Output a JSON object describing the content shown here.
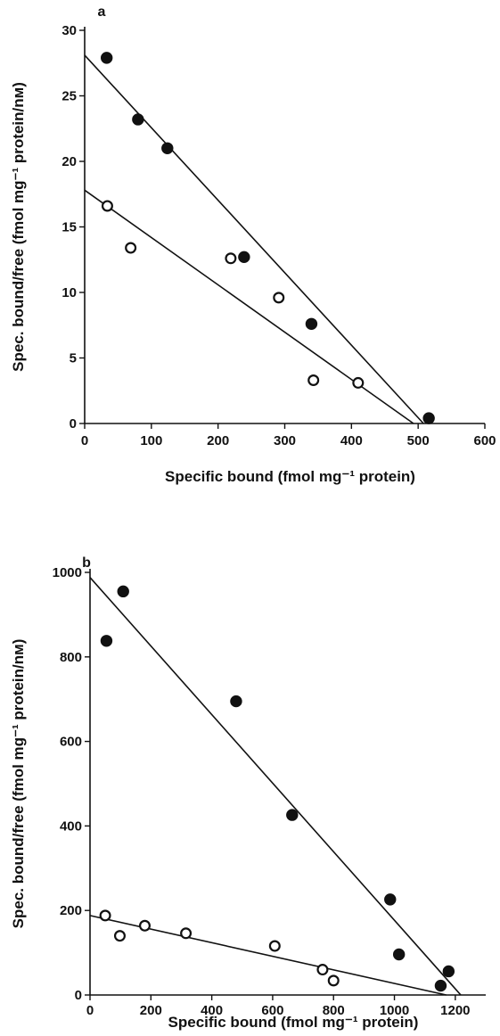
{
  "chart_data": [
    {
      "panel": "a",
      "type": "scatter",
      "xlabel": "Specific bound (fmol mg⁻¹ protein)",
      "ylabel": "Spec. bound/free (fmol mg⁻¹ protein/nм)",
      "xlim": [
        0,
        600
      ],
      "ylim": [
        0,
        30
      ],
      "xticks": [
        0,
        100,
        200,
        300,
        400,
        500,
        600
      ],
      "yticks": [
        0,
        5,
        10,
        15,
        20,
        25,
        30
      ],
      "grid": false,
      "series": [
        {
          "marker": "filled-circle",
          "points": [
            [
              33,
              27.9
            ],
            [
              80,
              23.2
            ],
            [
              124,
              21.0
            ],
            [
              239,
              12.7
            ],
            [
              340,
              7.6
            ],
            [
              516,
              0.4
            ]
          ],
          "fit_line": [
            [
              0,
              28.1
            ],
            [
              508,
              0
            ]
          ]
        },
        {
          "marker": "open-circle",
          "points": [
            [
              34,
              16.6
            ],
            [
              69,
              13.4
            ],
            [
              219,
              12.6
            ],
            [
              291,
              9.6
            ],
            [
              343,
              3.3
            ],
            [
              410,
              3.1
            ]
          ],
          "fit_line": [
            [
              0,
              17.8
            ],
            [
              493,
              0
            ]
          ]
        }
      ]
    },
    {
      "panel": "b",
      "type": "scatter",
      "xlabel": "Specific bound (fmol mg⁻¹ protein)",
      "ylabel": "Spec. bound/free (fmol mg⁻¹ protein/nм)",
      "xlim": [
        0,
        1300
      ],
      "ylim": [
        0,
        1000
      ],
      "xticks": [
        0,
        200,
        400,
        600,
        800,
        1000,
        1200
      ],
      "yticks": [
        0,
        200,
        400,
        600,
        800,
        1000
      ],
      "grid": false,
      "series": [
        {
          "marker": "filled-circle",
          "points": [
            [
              54,
              838
            ],
            [
              109,
              955
            ],
            [
              480,
              695
            ],
            [
              664,
              426
            ],
            [
              986,
              226
            ],
            [
              1015,
              96
            ],
            [
              1152,
              22
            ],
            [
              1178,
              56
            ]
          ],
          "fit_line": [
            [
              0,
              988
            ],
            [
              1218,
              0
            ]
          ]
        },
        {
          "marker": "open-circle",
          "points": [
            [
              50,
              188
            ],
            [
              98,
              140
            ],
            [
              180,
              164
            ],
            [
              315,
              146
            ],
            [
              607,
              116
            ],
            [
              764,
              60
            ],
            [
              800,
              34
            ]
          ],
          "fit_line": [
            [
              0,
              188
            ],
            [
              1170,
              0
            ]
          ]
        }
      ]
    }
  ]
}
